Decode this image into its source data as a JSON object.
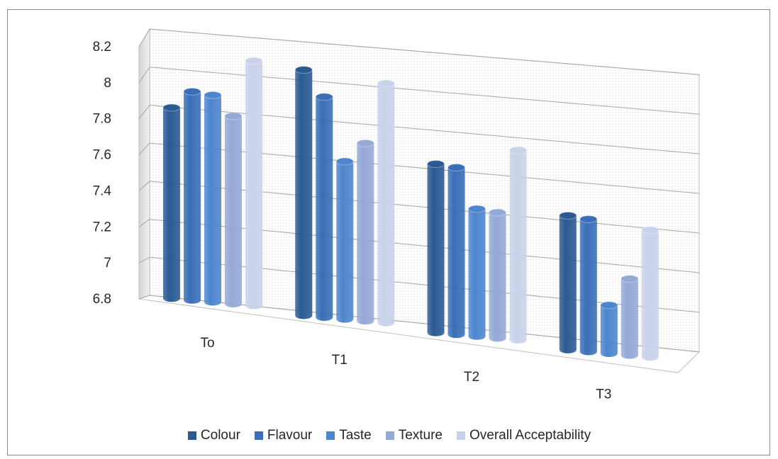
{
  "chart_data": {
    "type": "bar",
    "style": "3d-cylinder",
    "categories": [
      "To",
      "T1",
      "T2",
      "T3"
    ],
    "series": [
      {
        "name": "Colour",
        "values": [
          7.78,
          8.05,
          7.65,
          7.47
        ],
        "color": "#2b5a93"
      },
      {
        "name": "Flavour",
        "values": [
          7.87,
          7.92,
          7.64,
          7.46
        ],
        "color": "#3a6fb8"
      },
      {
        "name": "Taste",
        "values": [
          7.86,
          7.6,
          7.44,
          7.04
        ],
        "color": "#4d86cf"
      },
      {
        "name": "Texture",
        "values": [
          7.76,
          7.7,
          7.43,
          7.18
        ],
        "color": "#95a9d6"
      },
      {
        "name": "Overall Acceptability",
        "values": [
          8.05,
          8.01,
          7.75,
          7.43
        ],
        "color": "#c8d2ea"
      }
    ],
    "ylim": [
      6.8,
      8.2
    ],
    "yticks": [
      "6.8",
      "7",
      "7.2",
      "7.4",
      "7.6",
      "7.8",
      "8",
      "8.2"
    ],
    "grid": true,
    "legend_position": "bottom"
  }
}
